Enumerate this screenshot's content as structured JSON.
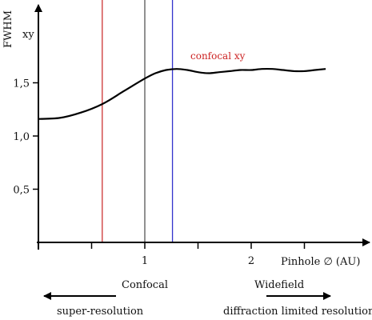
{
  "chart_data": {
    "type": "line",
    "ylabel": "FWHM",
    "ylabel_sub": "xy",
    "xlabel": "Pinhole ∅ (AU)",
    "xlim": [
      0,
      3.1
    ],
    "ylim": [
      0,
      2.2
    ],
    "x_ticks": [
      {
        "value": 1,
        "label": "1"
      },
      {
        "value": 2,
        "label": "2"
      }
    ],
    "x_minor_ticks": [
      0,
      0.5,
      1.5,
      2.5
    ],
    "y_ticks": [
      {
        "value": 0.5,
        "label": "0,5"
      },
      {
        "value": 1.0,
        "label": "1,0"
      },
      {
        "value": 1.5,
        "label": "1,5"
      }
    ],
    "grid": false,
    "series": [
      {
        "name": "confocal xy",
        "color": "#000000",
        "label_color": "#cc2222",
        "x": [
          0.0,
          0.2,
          0.4,
          0.6,
          0.8,
          1.0,
          1.1,
          1.2,
          1.3,
          1.4,
          1.5,
          1.6,
          1.7,
          1.8,
          1.9,
          2.0,
          2.1,
          2.2,
          2.3,
          2.4,
          2.5,
          2.6,
          2.7
        ],
        "y": [
          1.16,
          1.17,
          1.22,
          1.3,
          1.42,
          1.54,
          1.59,
          1.62,
          1.63,
          1.62,
          1.6,
          1.59,
          1.6,
          1.61,
          1.62,
          1.62,
          1.63,
          1.63,
          1.62,
          1.61,
          1.61,
          1.62,
          1.63
        ]
      }
    ],
    "vertical_lines": [
      {
        "x": 0.6,
        "color": "#cc3333"
      },
      {
        "x": 1.0,
        "color": "#555555"
      },
      {
        "x": 1.26,
        "color": "#3333cc"
      }
    ],
    "annotations": {
      "confocal": "Confocal",
      "widefield": "Widefield",
      "left_arrow_text": "super-resolution",
      "right_arrow_text": "diffraction limited resolution"
    }
  }
}
